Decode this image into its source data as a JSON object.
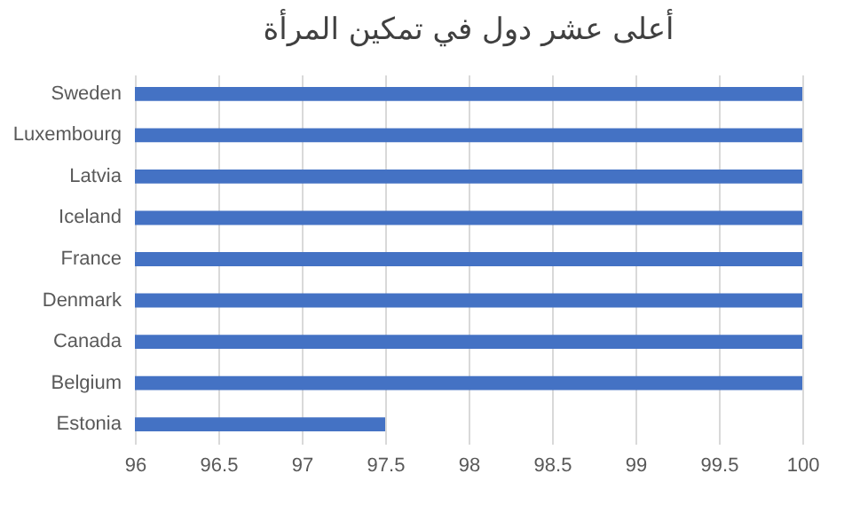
{
  "chart_data": {
    "type": "bar",
    "orientation": "horizontal",
    "title": "أعلى عشر دول في تمكين المرأة",
    "categories": [
      "Sweden",
      "Luxembourg",
      "Latvia",
      "Iceland",
      "France",
      "Denmark",
      "Canada",
      "Belgium",
      "Estonia"
    ],
    "values": [
      100,
      100,
      100,
      100,
      100,
      100,
      100,
      100,
      97.5
    ],
    "color": "#4472c4",
    "xlim": [
      96,
      100
    ],
    "xticks": [
      96,
      96.5,
      97,
      97.5,
      98,
      98.5,
      99,
      99.5,
      100
    ],
    "grid": "x"
  }
}
